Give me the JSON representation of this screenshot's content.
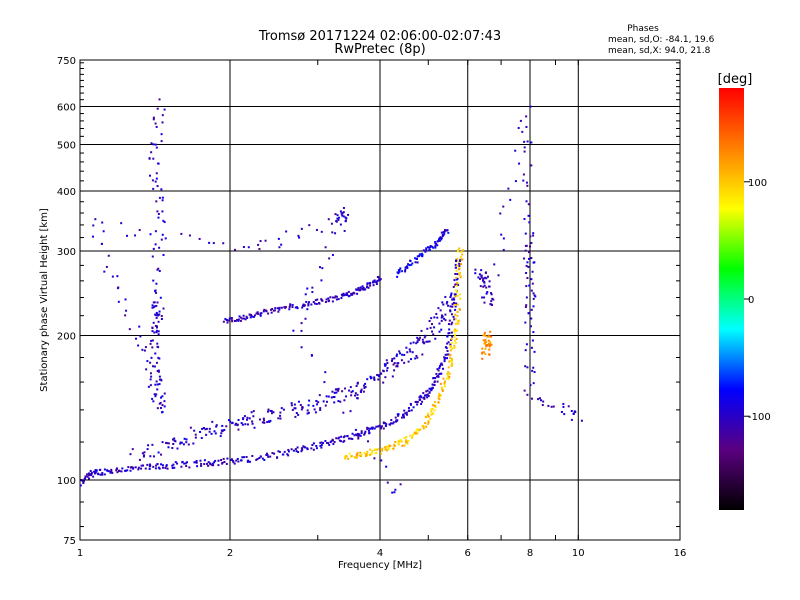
{
  "chart_data": {
    "type": "scatter",
    "title": "Tromsø 20171224 02:06:00-02:07:43",
    "subtitle": "RwPretec (8p)",
    "xlabel": "Frequency [MHz]",
    "ylabel": "Stationary phase Virtual Height [km]",
    "x_scale": "log",
    "y_scale": "log",
    "xlim": [
      1,
      16
    ],
    "ylim": [
      75,
      750
    ],
    "x_ticks": [
      1,
      2,
      4,
      6,
      8,
      10,
      16
    ],
    "y_ticks": [
      75,
      100,
      200,
      300,
      400,
      500,
      600,
      750
    ],
    "grid": true,
    "stats": {
      "heading": "Phases",
      "line_o": "mean, sd,O: -84.1, 19.6",
      "line_x": "mean, sd,X:  94.0, 21.8"
    },
    "colorbar": {
      "label": "[deg]",
      "range": [
        -180,
        180
      ],
      "ticks": [
        100,
        0,
        -100
      ],
      "colormap": [
        "#000000",
        "#5a0080",
        "#0000ff",
        "#00ffff",
        "#00ff00",
        "#ffff00",
        "#ff8000",
        "#ff0000"
      ]
    },
    "traces": [
      {
        "name": "",
        "phase_deg": -100,
        "jitter": 0.025,
        "points": [
          [
            1.0,
            98
          ],
          [
            1.05,
            103
          ],
          [
            1.1,
            104
          ],
          [
            1.2,
            105
          ],
          [
            1.35,
            106
          ],
          [
            1.5,
            107
          ],
          [
            1.7,
            108
          ],
          [
            1.9,
            109
          ],
          [
            2.1,
            110
          ],
          [
            2.4,
            112
          ],
          [
            2.7,
            115
          ],
          [
            3.0,
            118
          ],
          [
            3.3,
            121
          ],
          [
            3.6,
            124
          ],
          [
            3.9,
            128
          ],
          [
            4.2,
            132
          ],
          [
            4.5,
            138
          ],
          [
            4.8,
            146
          ],
          [
            5.0,
            152
          ],
          [
            5.2,
            162
          ],
          [
            5.4,
            178
          ],
          [
            5.55,
            205
          ],
          [
            5.65,
            245
          ],
          [
            5.75,
            290
          ]
        ]
      },
      {
        "name": "",
        "phase_deg": -100,
        "jitter": 0.06,
        "points": [
          [
            1.3,
            112
          ],
          [
            1.5,
            118
          ],
          [
            1.7,
            124
          ],
          [
            1.9,
            128
          ],
          [
            2.1,
            132
          ],
          [
            2.3,
            135
          ],
          [
            2.6,
            138
          ],
          [
            2.9,
            142
          ],
          [
            3.2,
            148
          ],
          [
            3.5,
            152
          ],
          [
            3.8,
            160
          ],
          [
            4.1,
            168
          ],
          [
            4.4,
            178
          ],
          [
            4.7,
            188
          ],
          [
            5.0,
            200
          ],
          [
            5.3,
            218
          ],
          [
            5.5,
            240
          ]
        ]
      },
      {
        "name": "",
        "phase_deg": -105,
        "jitter": 0.02,
        "points": [
          [
            1.95,
            215
          ],
          [
            2.1,
            217
          ],
          [
            2.3,
            222
          ],
          [
            2.5,
            227
          ],
          [
            2.8,
            232
          ],
          [
            3.1,
            236
          ],
          [
            3.4,
            242
          ],
          [
            3.6,
            247
          ],
          [
            3.8,
            254
          ],
          [
            4.0,
            262
          ]
        ]
      },
      {
        "name": "",
        "phase_deg": -90,
        "jitter": 0.02,
        "points": [
          [
            4.3,
            268
          ],
          [
            4.6,
            282
          ],
          [
            4.9,
            296
          ],
          [
            5.2,
            312
          ],
          [
            5.45,
            330
          ]
        ]
      },
      {
        "name": "",
        "phase_deg": 100,
        "jitter": 0.025,
        "points": [
          [
            3.4,
            112
          ],
          [
            3.7,
            113
          ],
          [
            4.0,
            115
          ],
          [
            4.3,
            118
          ],
          [
            4.6,
            122
          ],
          [
            4.9,
            130
          ],
          [
            5.1,
            140
          ],
          [
            5.3,
            152
          ],
          [
            5.5,
            170
          ],
          [
            5.6,
            190
          ],
          [
            5.7,
            215
          ],
          [
            5.75,
            260
          ],
          [
            5.8,
            300
          ]
        ]
      },
      {
        "name": "",
        "phase_deg": 120,
        "jitter": 0.04,
        "points": [
          [
            6.5,
            180
          ],
          [
            6.55,
            200
          ],
          [
            6.6,
            190
          ]
        ]
      },
      {
        "name": "",
        "phase_deg": -100,
        "jitter": 0.05,
        "points": [
          [
            6.3,
            270
          ],
          [
            6.5,
            260
          ],
          [
            6.6,
            230
          ],
          [
            7.9,
            590
          ],
          [
            7.95,
            330
          ],
          [
            8.0,
            270
          ],
          [
            8.0,
            220
          ],
          [
            8.0,
            150
          ],
          [
            10.0,
            135
          ]
        ]
      },
      {
        "name": "",
        "phase_deg": -100,
        "jitter": 0.05,
        "points": [
          [
            1.45,
            610
          ],
          [
            1.4,
            460
          ],
          [
            1.45,
            355
          ],
          [
            1.42,
            235
          ],
          [
            1.45,
            220
          ],
          [
            1.4,
            195
          ],
          [
            1.45,
            160
          ],
          [
            1.45,
            140
          ],
          [
            1.3,
            200
          ],
          [
            1.05,
            340
          ],
          [
            2.2,
            300
          ],
          [
            3.3,
            350
          ],
          [
            3.4,
            360
          ],
          [
            2.7,
            210
          ],
          [
            4.3,
            96
          ]
        ]
      }
    ]
  }
}
